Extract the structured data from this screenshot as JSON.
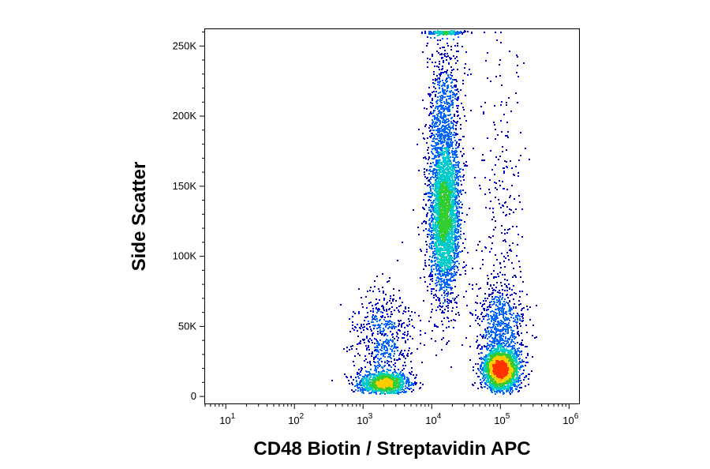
{
  "chart_data": {
    "type": "scatter",
    "subtype": "flow-cytometry density dot plot",
    "title": "",
    "xlabel": "CD48 Biotin / Streptavidin APC",
    "ylabel": "Side Scatter",
    "x_scale": "log",
    "xlim": [
      5,
      1400000
    ],
    "ylim": [
      -5000,
      262000
    ],
    "x_ticks": [
      {
        "value": 10,
        "base": "10",
        "exp": "1"
      },
      {
        "value": 100,
        "base": "10",
        "exp": "2"
      },
      {
        "value": 1000,
        "base": "10",
        "exp": "3"
      },
      {
        "value": 10000,
        "base": "10",
        "exp": "4"
      },
      {
        "value": 100000,
        "base": "10",
        "exp": "5"
      },
      {
        "value": 1000000,
        "base": "10",
        "exp": "6"
      }
    ],
    "y_ticks": [
      {
        "value": 0,
        "label": "0"
      },
      {
        "value": 50000,
        "label": "50K"
      },
      {
        "value": 100000,
        "label": "100K"
      },
      {
        "value": 150000,
        "label": "150K"
      },
      {
        "value": 200000,
        "label": "200K"
      },
      {
        "value": 250000,
        "label": "250K"
      }
    ],
    "grid": false,
    "legend": "none",
    "color_scale": [
      "#0000cc",
      "#0066ff",
      "#00cccc",
      "#33cc33",
      "#ffcc00",
      "#ff3300"
    ],
    "populations": [
      {
        "center_x": 2000,
        "center_y": 10000,
        "spread_log_x": 0.19,
        "spread_y": 4000,
        "count": 1100
      },
      {
        "center_x": 2000,
        "center_y": 40000,
        "spread_log_x": 0.22,
        "spread_y": 18000,
        "count": 600
      },
      {
        "center_x": 15000,
        "center_y": 130000,
        "spread_log_x": 0.11,
        "spread_y": 30000,
        "count": 3000
      },
      {
        "center_x": 15000,
        "center_y": 200000,
        "spread_log_x": 0.13,
        "spread_y": 30000,
        "count": 700
      },
      {
        "center_x": 100000,
        "center_y": 20000,
        "spread_log_x": 0.13,
        "spread_y": 7000,
        "count": 2200
      },
      {
        "center_x": 100000,
        "center_y": 50000,
        "spread_log_x": 0.17,
        "spread_y": 18000,
        "count": 700
      },
      {
        "center_x": 100000,
        "center_y": 130000,
        "spread_log_x": 0.2,
        "spread_y": 60000,
        "count": 250
      },
      {
        "center_x": 15000,
        "center_y": 260000,
        "spread_log_x": 0.12,
        "spread_y": 600,
        "count": 250
      }
    ]
  }
}
